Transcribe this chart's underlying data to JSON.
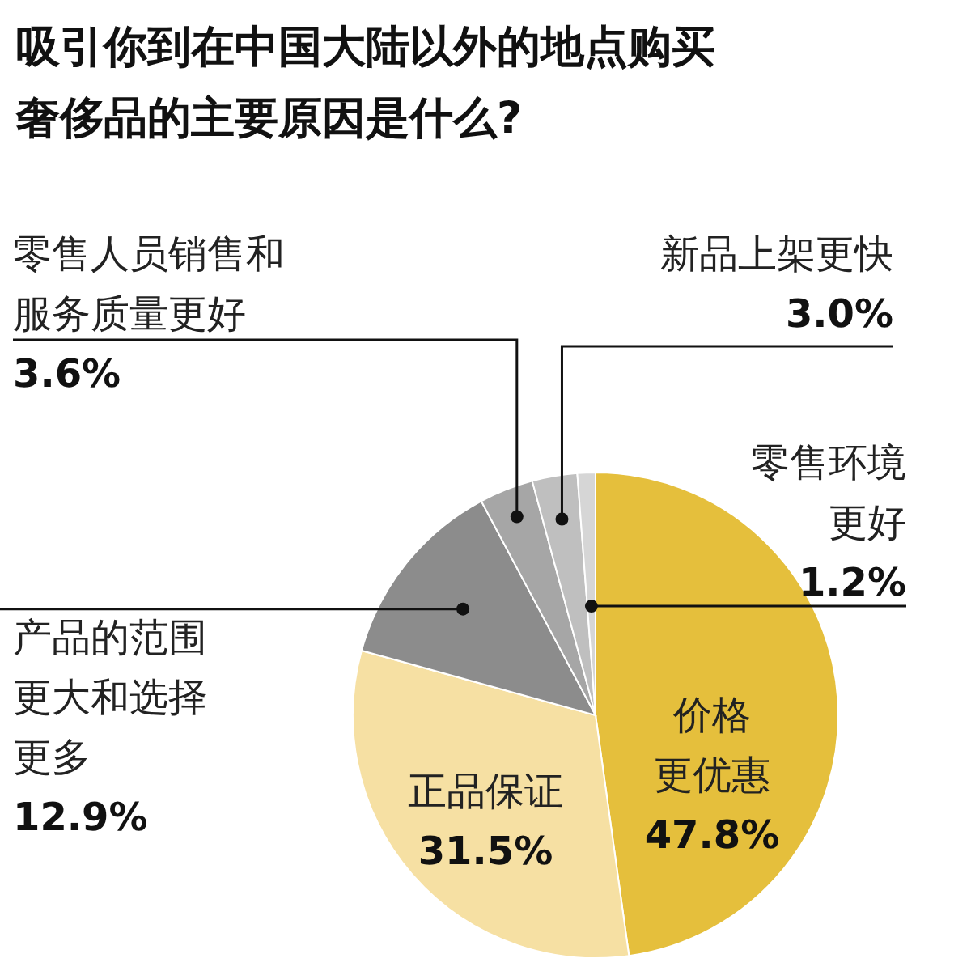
{
  "chart_data": {
    "type": "pie",
    "title": "吸引你到在中国大陆以外的地点购买奢侈品的主要原因是什么?",
    "categories": [
      "价格更优惠",
      "正品保证",
      "产品的范围更大和选择更多",
      "零售人员销售和服务质量更好",
      "新品上架更快",
      "零售环境更好"
    ],
    "values": [
      47.8,
      31.5,
      12.9,
      3.6,
      3.0,
      1.2
    ],
    "value_labels": [
      "47.8%",
      "31.5%",
      "12.9%",
      "3.6%",
      "3.0%",
      "1.2%"
    ],
    "colors": [
      "#e5bf3c",
      "#f6e0a3",
      "#8c8c8c",
      "#a6a6a6",
      "#bfbfbf",
      "#d6d6d6"
    ]
  }
}
